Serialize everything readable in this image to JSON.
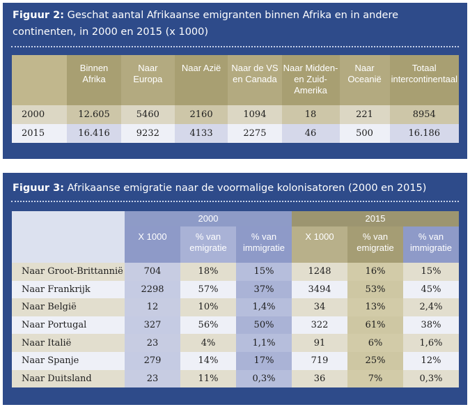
{
  "figure2": {
    "title_prefix": "Figuur 2:",
    "title_text": "Geschat aantal Afrikaanse emigranten binnen Afrika en in andere continenten, in 2000 en 2015 (x 1000)",
    "columns": [
      "Binnen Afrika",
      "Naar Europa",
      "Naar Azië",
      "Naar de VS en Canada",
      "Naar Midden- en Zuid-Amerika",
      "Naar Oceanië",
      "Totaal intercontinentaal"
    ],
    "rows": [
      {
        "year": "2000",
        "values": [
          "12.605",
          "5460",
          "2160",
          "1094",
          "18",
          "221",
          "8954"
        ]
      },
      {
        "year": "2015",
        "values": [
          "16.416",
          "9232",
          "4133",
          "2275",
          "46",
          "500",
          "16.186"
        ]
      }
    ]
  },
  "figure3": {
    "title_prefix": "Figuur 3:",
    "title_text": "Afrikaanse emigratie naar de voormalige kolonisatoren (2000 en 2015)",
    "groups": [
      "2000",
      "2015"
    ],
    "subheaders": [
      "X 1000",
      "% van emigratie",
      "% van immigratie",
      "X 1000",
      "% van emigratie",
      "% van immigratie"
    ],
    "rows": [
      {
        "label": "Naar Groot-Brittannië",
        "values": [
          "704",
          "18%",
          "15%",
          "1248",
          "16%",
          "15%"
        ]
      },
      {
        "label": "Naar Frankrijk",
        "values": [
          "2298",
          "57%",
          "37%",
          "3494",
          "53%",
          "45%"
        ]
      },
      {
        "label": "Naar België",
        "values": [
          "12",
          "10%",
          "1,4%",
          "34",
          "13%",
          "2,4%"
        ]
      },
      {
        "label": "Naar Portugal",
        "values": [
          "327",
          "56%",
          "50%",
          "322",
          "61%",
          "38%"
        ]
      },
      {
        "label": "Naar Italië",
        "values": [
          "23",
          "4%",
          "1,1%",
          "91",
          "6%",
          "1,6%"
        ]
      },
      {
        "label": "Naar Spanje",
        "values": [
          "279",
          "14%",
          "17%",
          "719",
          "25%",
          "12%"
        ]
      },
      {
        "label": "Naar Duitsland",
        "values": [
          "23",
          "11%",
          "0,3%",
          "36",
          "7%",
          "0,3%"
        ]
      }
    ]
  },
  "colors": {
    "panel_blue": "#2e4b8a",
    "khaki_header": "#b3aa80",
    "blue_header": "#8e9bc7"
  }
}
